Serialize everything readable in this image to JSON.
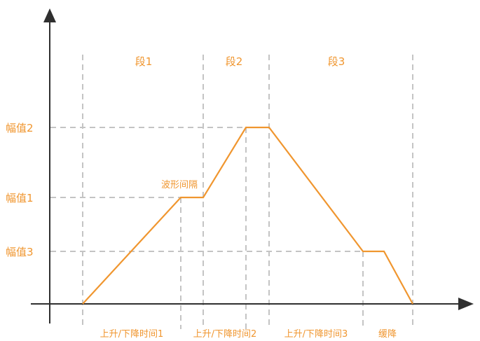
{
  "colors": {
    "accent": "#f0962f",
    "axis": "#2f2f2f",
    "guide": "#c4c4c4"
  },
  "diagram": {
    "segments": [
      "段1",
      "段2",
      "段3"
    ],
    "amplitudes": {
      "amp2": "幅值2",
      "amp1": "幅值1",
      "amp3": "幅值3"
    },
    "interval_label": "波形间隔",
    "time_labels": [
      "上升/下降时间1",
      "上升/下降时间2",
      "上升/下降时间3",
      "缓降"
    ]
  }
}
